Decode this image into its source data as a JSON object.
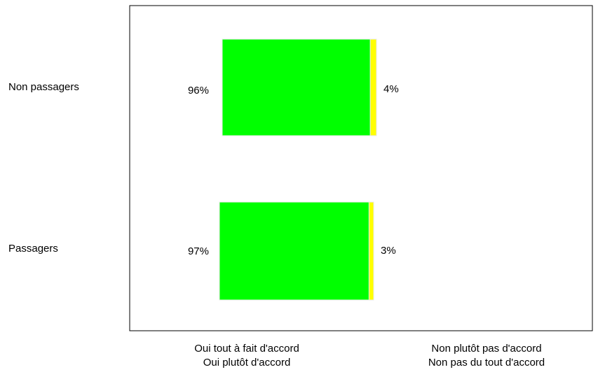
{
  "chart_data": {
    "type": "bar",
    "orientation": "horizontal",
    "stacked": true,
    "categories": [
      "Non passagers",
      "Passagers"
    ],
    "series": [
      {
        "name": "Oui tout à fait d'accord\nOui plutôt d'accord",
        "values": [
          96,
          97
        ],
        "labels": [
          "96%",
          "97%"
        ],
        "color": "#00ff00"
      },
      {
        "name": "Non plutôt pas d'accord\nNon pas du tout d'accord",
        "values": [
          4,
          3
        ],
        "labels": [
          "4%",
          "3%"
        ],
        "color": "#ffff00"
      }
    ],
    "legend": {
      "placement": "bottom",
      "items": [
        {
          "line1": "Oui tout à fait d'accord",
          "line2": "Oui plutôt d'accord"
        },
        {
          "line1": "Non plutôt pas d'accord",
          "line2": "Non pas du tout d'accord"
        }
      ]
    },
    "grid": false
  }
}
